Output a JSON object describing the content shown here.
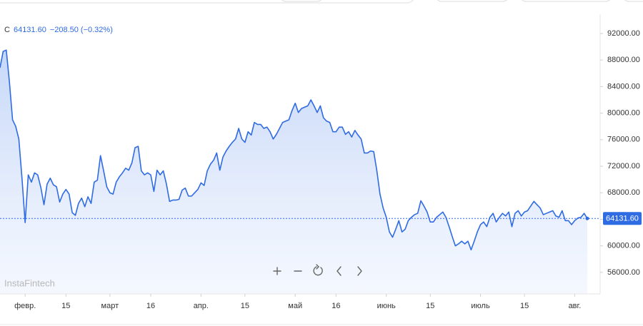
{
  "chart_data": {
    "type": "line",
    "legend": {
      "symbol": "C",
      "close": "64131.60",
      "change": "−208.50",
      "change_pct": "(−0.32%)"
    },
    "watermark": "InstaFintech",
    "price_label": "64131.60",
    "series": [
      {
        "name": "C",
        "color": "#2f6be3",
        "values": [
          86840,
          89300,
          89500,
          84700,
          79000,
          78000,
          76100,
          70200,
          63500,
          70700,
          69600,
          71000,
          70700,
          68800,
          66200,
          69300,
          70200,
          69200,
          68900,
          66600,
          67800,
          68500,
          67800,
          65000,
          64600,
          66400,
          67200,
          65900,
          67400,
          66400,
          69600,
          69900,
          73600,
          71300,
          68900,
          68000,
          67800,
          69600,
          70400,
          71000,
          71700,
          71400,
          72500,
          74800,
          75000,
          71300,
          70700,
          71000,
          70700,
          68200,
          71400,
          70700,
          71300,
          69300,
          66700,
          66900,
          66900,
          67000,
          68400,
          68700,
          67500,
          67500,
          68000,
          68500,
          69500,
          69100,
          71300,
          72300,
          72900,
          74000,
          71400,
          73400,
          74300,
          75000,
          75600,
          76100,
          77700,
          76100,
          75600,
          77200,
          76700,
          78600,
          78300,
          78300,
          77700,
          77900,
          77200,
          76100,
          76800,
          77700,
          78600,
          78800,
          79000,
          80400,
          81500,
          80100,
          80700,
          80900,
          81100,
          82000,
          81100,
          80100,
          81100,
          79300,
          78800,
          78600,
          77200,
          77200,
          77900,
          77900,
          76800,
          77200,
          76400,
          77400,
          76700,
          76100,
          74000,
          74000,
          74300,
          74200,
          71300,
          67800,
          65700,
          64300,
          62100,
          61300,
          62500,
          63800,
          62100,
          62500,
          63800,
          64300,
          64700,
          64900,
          66800,
          66000,
          65100,
          63600,
          63600,
          64300,
          64700,
          65100,
          64300,
          62900,
          61400,
          60000,
          60300,
          60700,
          60300,
          60700,
          59400,
          60700,
          62100,
          63200,
          63600,
          62900,
          64300,
          64900,
          63600,
          64300,
          64900,
          64500,
          65100,
          62900,
          64900,
          65300,
          64500,
          65100,
          65300,
          66000,
          66700,
          66200,
          65700,
          64700,
          64900,
          65100,
          65300,
          64500,
          64300,
          65300,
          63800,
          63800,
          63200,
          63800,
          64200,
          64300,
          64900,
          64131.6
        ]
      }
    ],
    "ylim": [
      52760,
      94900
    ],
    "yticks": [
      {
        "value": 56000,
        "label": "56000.00"
      },
      {
        "value": 60000,
        "label": "60000.00"
      },
      {
        "value": 64000,
        "label": "64000.00"
      },
      {
        "value": 68000,
        "label": "68000.00"
      },
      {
        "value": 72000,
        "label": "72000.00"
      },
      {
        "value": 76000,
        "label": "76000.00"
      },
      {
        "value": 80000,
        "label": "80000.00"
      },
      {
        "value": 84000,
        "label": "84000.00"
      },
      {
        "value": 88000,
        "label": "88000.00"
      },
      {
        "value": 92000,
        "label": "92000.00"
      }
    ],
    "xlim": [
      0,
      187
    ],
    "xticks": [
      {
        "value": 8,
        "label": "февр."
      },
      {
        "value": 21,
        "label": "15"
      },
      {
        "value": 35,
        "label": "март"
      },
      {
        "value": 48,
        "label": "16"
      },
      {
        "value": 64,
        "label": "апр."
      },
      {
        "value": 78,
        "label": "15"
      },
      {
        "value": 94,
        "label": "май"
      },
      {
        "value": 107,
        "label": "16"
      },
      {
        "value": 123,
        "label": "июнь"
      },
      {
        "value": 137,
        "label": "15"
      },
      {
        "value": 153,
        "label": "июль"
      },
      {
        "value": 167,
        "label": "15"
      },
      {
        "value": 183,
        "label": "авг."
      }
    ]
  }
}
